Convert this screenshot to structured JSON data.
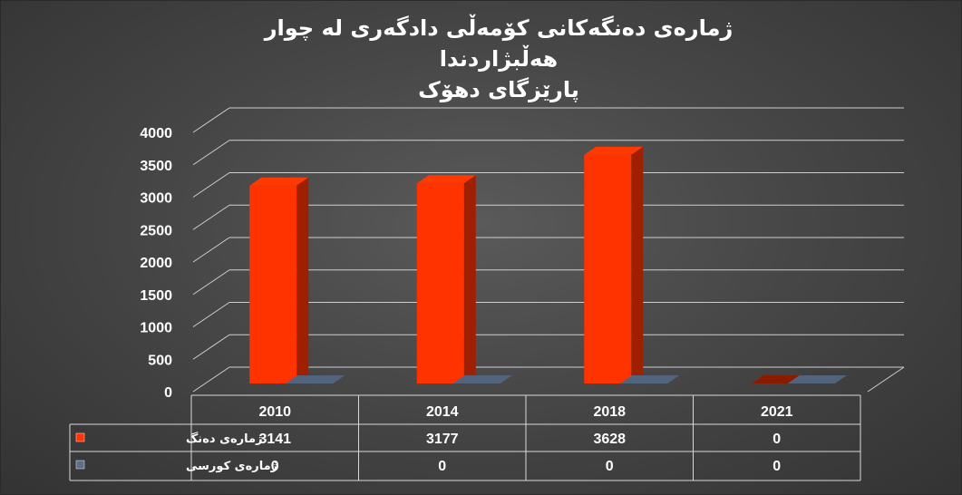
{
  "chart_data": {
    "type": "bar",
    "title_line1": "ژمارەی دەنگەکانی  کۆمەڵی دادگەری لە چوار هەڵبژاردندا",
    "title_line2": "پارێزگای دهۆک",
    "categories": [
      "2010",
      "2014",
      "2018",
      "2021"
    ],
    "series": [
      {
        "name": "ژمارەی دەنگ",
        "values": [
          3141,
          3177,
          3628,
          0
        ],
        "color": "#ff3300"
      },
      {
        "name": "ژمارەی کورسی",
        "values": [
          0,
          0,
          0,
          0
        ],
        "color": "#5a6f8a"
      }
    ],
    "ylim": [
      0,
      4000
    ],
    "yticks": [
      0,
      500,
      1000,
      1500,
      2000,
      2500,
      3000,
      3500,
      4000
    ],
    "grid": true,
    "legend": "data-table",
    "colors": {
      "background": "#474747",
      "grid": "#cfcfcf",
      "text": "#ffffff"
    }
  }
}
